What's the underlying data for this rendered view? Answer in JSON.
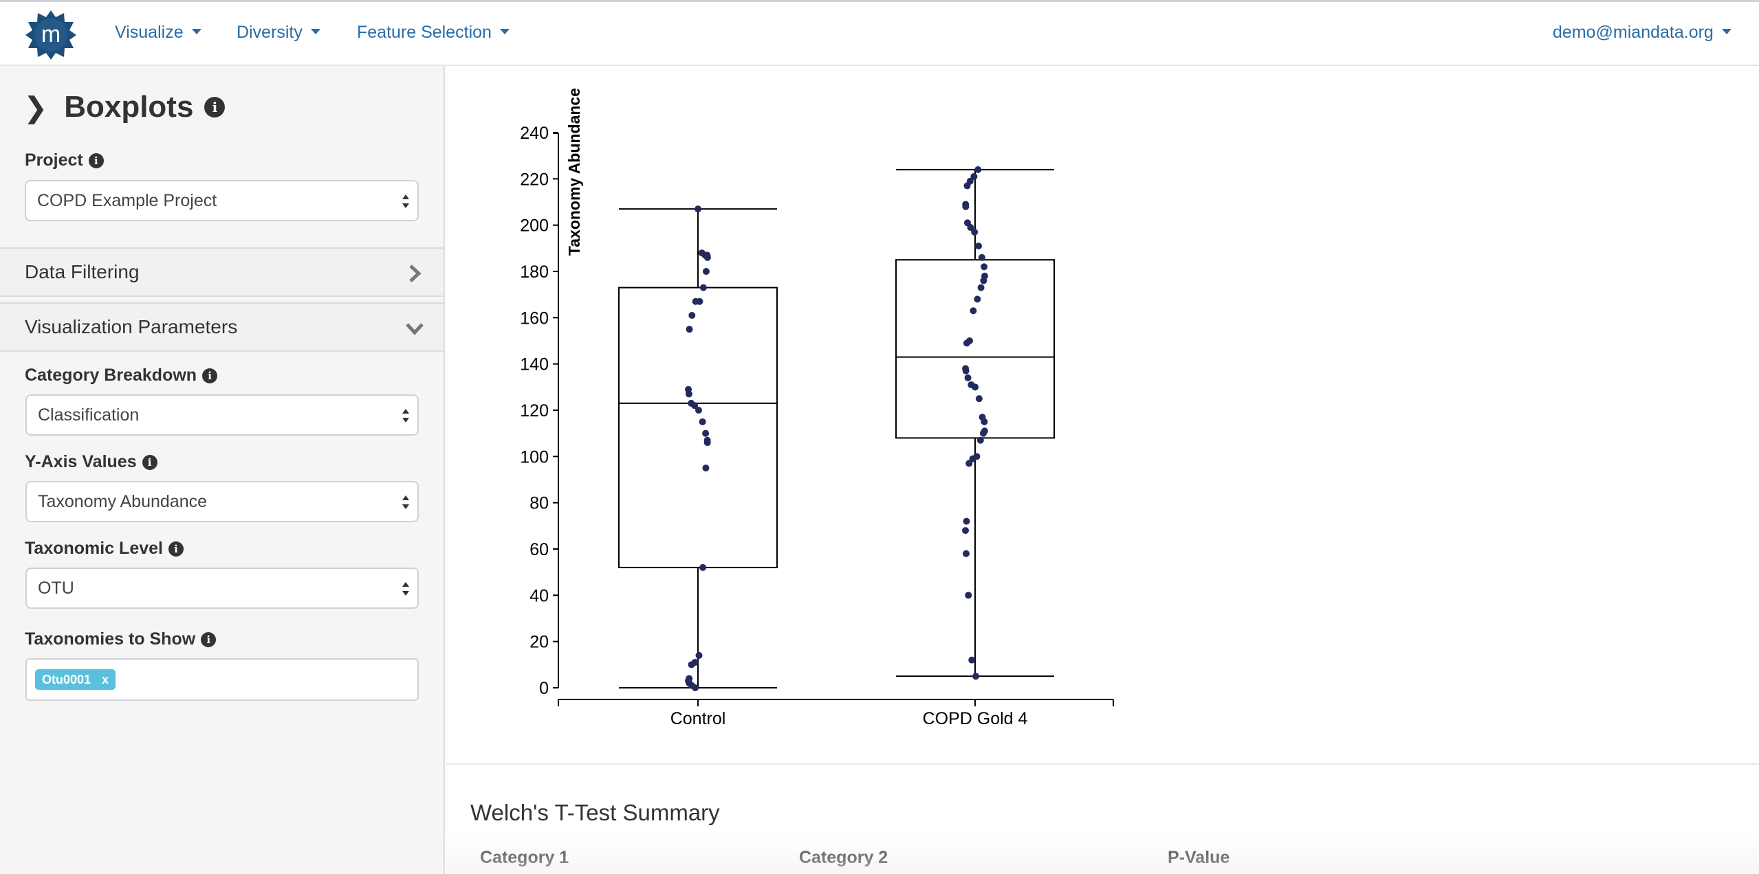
{
  "navbar": {
    "logo_letter": "m",
    "menu": [
      {
        "label": "Visualize"
      },
      {
        "label": "Diversity"
      },
      {
        "label": "Feature Selection"
      }
    ],
    "user": "demo@miandata.org"
  },
  "sidebar": {
    "title": "Boxplots",
    "project_label": "Project",
    "project_value": "COPD Example Project",
    "data_filtering": "Data Filtering",
    "vis_params": "Visualization Parameters",
    "category_label": "Category Breakdown",
    "category_value": "Classification",
    "yaxis_label": "Y-Axis Values",
    "yaxis_value": "Taxonomy Abundance",
    "taxlevel_label": "Taxonomic Level",
    "taxlevel_value": "OTU",
    "taxshow_label": "Taxonomies to Show",
    "tags": [
      {
        "label": "Otu0001",
        "remove": "x"
      }
    ]
  },
  "chart_data": {
    "type": "boxplot",
    "ylabel": "Taxonomy Abundance",
    "ylim": [
      0,
      240
    ],
    "yticks": [
      0,
      20,
      40,
      60,
      80,
      100,
      120,
      140,
      160,
      180,
      200,
      220,
      240
    ],
    "grid": false,
    "series": [
      {
        "name": "Control",
        "min": 0,
        "q1": 52,
        "median": 123,
        "q3": 173,
        "max": 207,
        "points": [
          207,
          188,
          187,
          187,
          186,
          180,
          173,
          167,
          167,
          161,
          155,
          129,
          127,
          123,
          122,
          120,
          115,
          110,
          107,
          106,
          95,
          52,
          14,
          11,
          10,
          4,
          3,
          2,
          1,
          0
        ]
      },
      {
        "name": "COPD Gold 4",
        "min": 5,
        "q1": 108,
        "median": 143,
        "q3": 185,
        "max": 224,
        "points": [
          224,
          221,
          219,
          217,
          209,
          208,
          201,
          199,
          197,
          191,
          186,
          182,
          178,
          176,
          173,
          168,
          163,
          150,
          149,
          138,
          137,
          134,
          131,
          130,
          125,
          117,
          115,
          111,
          110,
          107,
          100,
          99,
          97,
          72,
          68,
          58,
          40,
          12,
          5
        ]
      }
    ]
  },
  "ttest": {
    "title": "Welch's T-Test Summary",
    "headers": [
      "Category 1",
      "Category 2",
      "P-Value"
    ]
  }
}
